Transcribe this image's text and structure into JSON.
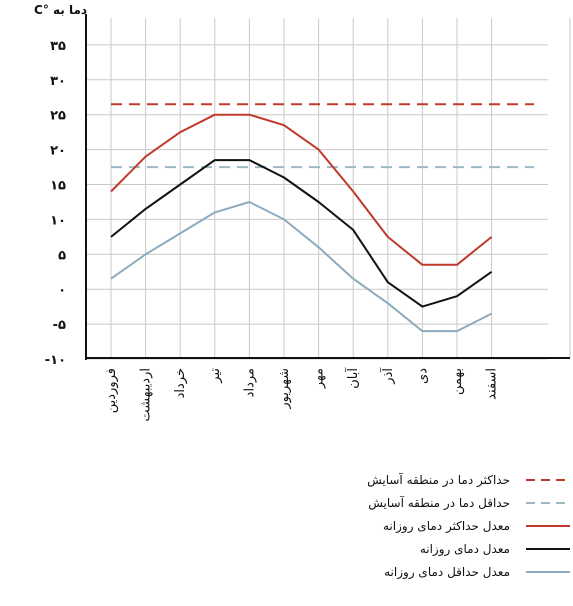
{
  "chart_data": {
    "type": "line",
    "ylabel": "دما به °C",
    "ylim": [
      -10,
      35
    ],
    "yticks": [
      35,
      30,
      25,
      20,
      15,
      10,
      5,
      0,
      -5,
      -10
    ],
    "ytick_labels": [
      "۳۵",
      "۳۰",
      "۲۵",
      "۲۰",
      "۱۵",
      "۱۰",
      "۵",
      "۰",
      "-۵",
      "-۱۰"
    ],
    "categories": [
      "فروردین",
      "اردیبهشت",
      "خرداد",
      "تیر",
      "مرداد",
      "شهریور",
      "مهر",
      "آبان",
      "آذر",
      "دی",
      "بهمن",
      "اسفند"
    ],
    "grid": true,
    "legend_position": "bottom-right",
    "series": [
      {
        "name": "حداکثر دما در منطقه آسایش",
        "style": "dashed",
        "color": "#c0392b",
        "values": [
          26.5,
          26.5,
          26.5,
          26.5,
          26.5,
          26.5,
          26.5,
          26.5,
          26.5,
          26.5,
          26.5,
          26.5
        ]
      },
      {
        "name": "حداقل دما در منطقه آسایش",
        "style": "dashed",
        "color": "#9fb7c4",
        "values": [
          17.5,
          17.5,
          17.5,
          17.5,
          17.5,
          17.5,
          17.5,
          17.5,
          17.5,
          17.5,
          17.5,
          17.5
        ]
      },
      {
        "name": "معدل حداکثر دمای روزانه",
        "style": "solid",
        "color": "#c0392b",
        "values": [
          14,
          19,
          22.5,
          25,
          25,
          23.5,
          20,
          14,
          7.5,
          3.5,
          3.5,
          7.5
        ]
      },
      {
        "name": "معدل دمای روزانه",
        "style": "solid",
        "color": "#111111",
        "values": [
          7.5,
          11.5,
          15,
          18.5,
          18.5,
          16,
          12.5,
          8.5,
          1,
          -2.5,
          -1,
          2.5
        ]
      },
      {
        "name": "معدل حداقل دمای روزانه",
        "style": "solid",
        "color": "#8eabbd",
        "values": [
          1.5,
          5,
          8,
          11,
          12.5,
          10,
          6,
          1.5,
          -2,
          -6,
          -6,
          -3.5
        ]
      }
    ]
  }
}
